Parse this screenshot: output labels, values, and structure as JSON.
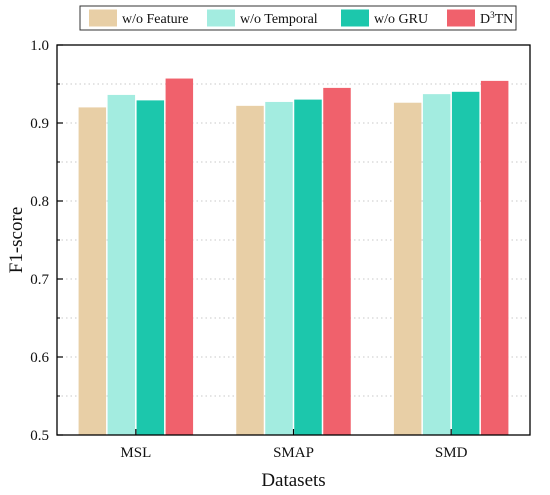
{
  "chart_data": {
    "type": "bar",
    "title": "",
    "xlabel": "Datasets",
    "ylabel": "F1-score",
    "categories": [
      "MSL",
      "SMAP",
      "SMD"
    ],
    "ylim": [
      0.5,
      1.0
    ],
    "yticks": [
      "0.5",
      "0.6",
      "0.7",
      "0.8",
      "0.9",
      "1.0"
    ],
    "grid": "horizontal dotted",
    "legend_position": "top",
    "series": [
      {
        "name": "w/o Feature",
        "color": "#E8CFA6",
        "values": [
          0.92,
          0.922,
          0.926
        ]
      },
      {
        "name": "w/o Temporal",
        "color": "#A3ECE0",
        "values": [
          0.936,
          0.927,
          0.937
        ]
      },
      {
        "name": "w/o GRU",
        "color": "#1CC7AC",
        "values": [
          0.929,
          0.93,
          0.94
        ]
      },
      {
        "name": "D3TN",
        "name_base": "D",
        "name_sup": "3",
        "name_rest": "TN",
        "color": "#F0616C",
        "values": [
          0.957,
          0.945,
          0.954
        ]
      }
    ]
  }
}
